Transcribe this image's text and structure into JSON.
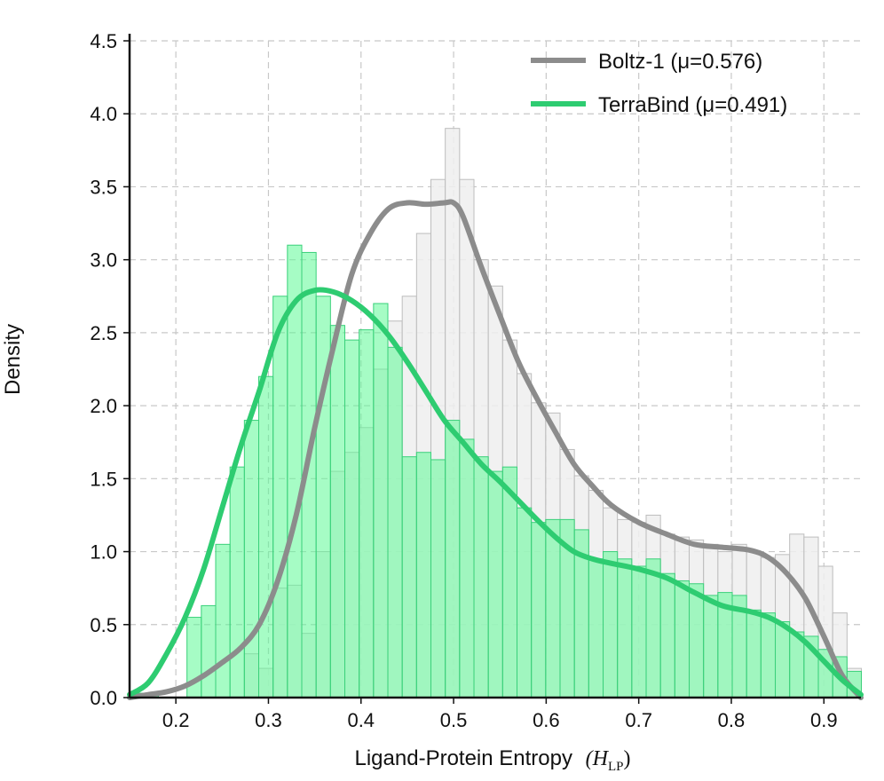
{
  "chart_data": {
    "type": "histogram_kde",
    "title": "",
    "xlabel": "Ligand-Protein Entropy",
    "xlabel_math": "(H",
    "xlabel_math_sub": "LP",
    "xlabel_math_close": ")",
    "ylabel": "Density",
    "xlim": [
      0.15,
      0.94
    ],
    "ylim": [
      0.0,
      4.5
    ],
    "x_ticks": [
      0.2,
      0.3,
      0.4,
      0.5,
      0.6,
      0.7,
      0.8,
      0.9
    ],
    "x_tick_labels": [
      "0.2",
      "0.3",
      "0.4",
      "0.5",
      "0.6",
      "0.7",
      "0.8",
      "0.9"
    ],
    "y_ticks": [
      0.0,
      0.5,
      1.0,
      1.5,
      2.0,
      2.5,
      3.0,
      3.5,
      4.0,
      4.5
    ],
    "y_tick_labels": [
      "0.0",
      "0.5",
      "1.0",
      "1.5",
      "2.0",
      "2.5",
      "3.0",
      "3.5",
      "4.0",
      "4.5"
    ],
    "grid": true,
    "legend_position": "top-right",
    "colors": {
      "boltz_line": "#8c8c8c",
      "boltz_fill": "#eeeeee",
      "boltz_edge": "#bdbdbd",
      "terra_line": "#2ecc71",
      "terra_fill": "#5dfa95",
      "terra_edge": "#3ad07a",
      "axis": "#111111"
    },
    "bins": {
      "start": 0.15,
      "width": 0.0155,
      "count": 51
    },
    "series": [
      {
        "name": "Boltz-1 (μ=0.576)",
        "mean": 0.576,
        "histogram": [
          0.02,
          0.02,
          0.0,
          0.0,
          0.0,
          0.0,
          0.0,
          0.0,
          0.3,
          0.2,
          0.75,
          0.77,
          0.44,
          1.0,
          1.55,
          1.68,
          1.85,
          2.25,
          2.58,
          2.75,
          3.18,
          3.55,
          3.9,
          3.55,
          3.0,
          2.82,
          2.45,
          2.22,
          2.02,
          1.95,
          1.7,
          1.52,
          1.42,
          1.3,
          1.22,
          1.2,
          1.25,
          1.12,
          1.1,
          1.08,
          1.05,
          1.0,
          1.05,
          1.0,
          0.96,
          0.98,
          1.12,
          1.1,
          0.9,
          0.58,
          0.2
        ],
        "kde_x": [
          0.15,
          0.17,
          0.19,
          0.21,
          0.23,
          0.25,
          0.27,
          0.29,
          0.31,
          0.33,
          0.35,
          0.37,
          0.39,
          0.41,
          0.43,
          0.45,
          0.47,
          0.49,
          0.5,
          0.51,
          0.53,
          0.55,
          0.57,
          0.59,
          0.61,
          0.63,
          0.65,
          0.67,
          0.7,
          0.73,
          0.76,
          0.79,
          0.82,
          0.84,
          0.86,
          0.88,
          0.9,
          0.92,
          0.94
        ],
        "kde_y": [
          0.0,
          0.02,
          0.04,
          0.08,
          0.15,
          0.24,
          0.34,
          0.5,
          0.8,
          1.25,
          1.85,
          2.4,
          2.9,
          3.18,
          3.35,
          3.39,
          3.38,
          3.39,
          3.39,
          3.3,
          2.95,
          2.62,
          2.3,
          2.05,
          1.82,
          1.6,
          1.45,
          1.32,
          1.2,
          1.12,
          1.05,
          1.03,
          1.01,
          0.96,
          0.85,
          0.68,
          0.42,
          0.15,
          0.0
        ]
      },
      {
        "name": "TerraBind (μ=0.491)",
        "mean": 0.491,
        "histogram": [
          0.03,
          0.03,
          0.0,
          0.0,
          0.55,
          0.63,
          1.05,
          1.58,
          1.9,
          2.2,
          2.75,
          3.1,
          3.05,
          2.75,
          2.55,
          2.45,
          2.52,
          2.7,
          2.4,
          1.65,
          1.68,
          1.63,
          1.9,
          1.77,
          1.65,
          1.55,
          1.58,
          1.3,
          1.2,
          1.22,
          1.22,
          1.15,
          0.95,
          1.0,
          0.95,
          0.9,
          0.95,
          0.85,
          0.8,
          0.78,
          0.7,
          0.72,
          0.7,
          0.6,
          0.58,
          0.52,
          0.45,
          0.42,
          0.33,
          0.28,
          0.18
        ],
        "kde_x": [
          0.15,
          0.17,
          0.19,
          0.21,
          0.23,
          0.25,
          0.27,
          0.29,
          0.31,
          0.33,
          0.35,
          0.37,
          0.39,
          0.41,
          0.43,
          0.45,
          0.47,
          0.49,
          0.51,
          0.53,
          0.55,
          0.57,
          0.59,
          0.61,
          0.63,
          0.65,
          0.67,
          0.7,
          0.73,
          0.76,
          0.79,
          0.82,
          0.84,
          0.86,
          0.88,
          0.9,
          0.92,
          0.94
        ],
        "kde_y": [
          0.02,
          0.1,
          0.3,
          0.55,
          0.88,
          1.3,
          1.72,
          2.1,
          2.5,
          2.72,
          2.79,
          2.78,
          2.72,
          2.62,
          2.48,
          2.3,
          2.1,
          1.9,
          1.75,
          1.6,
          1.48,
          1.35,
          1.22,
          1.1,
          1.0,
          0.95,
          0.92,
          0.88,
          0.82,
          0.72,
          0.63,
          0.59,
          0.55,
          0.48,
          0.38,
          0.25,
          0.12,
          0.02
        ]
      }
    ]
  }
}
